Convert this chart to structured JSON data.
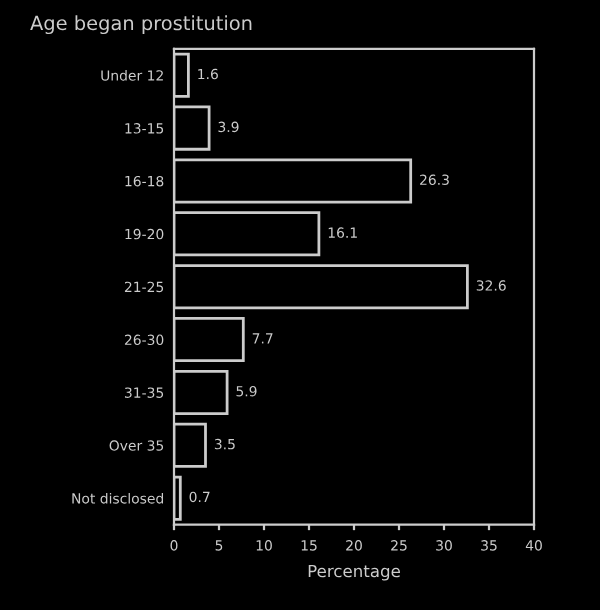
{
  "chart_data": {
    "type": "bar",
    "orientation": "horizontal",
    "title": "Age began prostitution",
    "xlabel": "Percentage",
    "categories": [
      "Under 12",
      "13-15",
      "16-18",
      "19-20",
      "21-25",
      "26-30",
      "31-35",
      "Over 35",
      "Not disclosed"
    ],
    "values": [
      1.6,
      3.9,
      26.3,
      16.1,
      32.6,
      7.7,
      5.9,
      3.5,
      0.7
    ],
    "color": "#000000",
    "xlim": [
      0,
      40
    ],
    "xticks": [
      0,
      5,
      10,
      15,
      20,
      25,
      30,
      35,
      40
    ],
    "data_labels": true,
    "grid": false,
    "legend": false
  }
}
